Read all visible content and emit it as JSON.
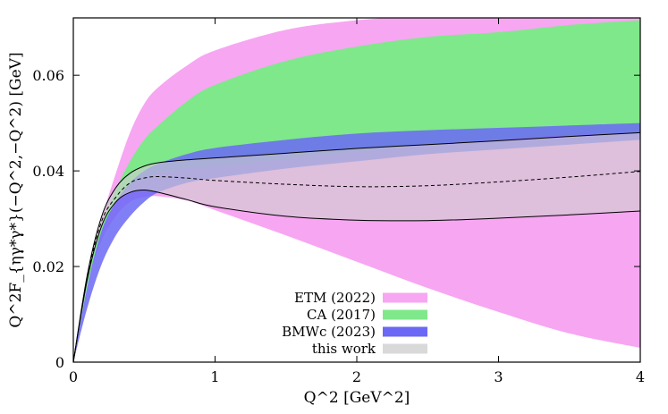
{
  "chart_data": {
    "type": "area",
    "xlabel": "Q^2 [GeV^2]",
    "ylabel": "Q^2F_{ηγ*γ*}(−Q^2,−Q^2) [GeV]",
    "xlim": [
      0,
      4
    ],
    "ylim": [
      0,
      0.072
    ],
    "x_ticks": [
      0,
      1,
      2,
      3,
      4
    ],
    "x_tick_labels": [
      "0",
      "1",
      "2",
      "3",
      "4"
    ],
    "y_ticks": [
      0,
      0.02,
      0.04,
      0.06
    ],
    "y_tick_labels": [
      "0",
      "0.02",
      "0.04",
      "0.06"
    ],
    "grid": false,
    "legend_position": "bottom-center",
    "series": [
      {
        "name": "ETM (2022)",
        "color": "#f7a6f2",
        "x": [
          0,
          0.1,
          0.2,
          0.3,
          0.4,
          0.5,
          0.6,
          0.8,
          1.0,
          1.5,
          2.0,
          2.5,
          3.0,
          3.5,
          4.0
        ],
        "lower": [
          0,
          0.0165,
          0.0255,
          0.0305,
          0.0335,
          0.0345,
          0.0347,
          0.0338,
          0.0318,
          0.0265,
          0.021,
          0.0155,
          0.0105,
          0.006,
          0.003
        ],
        "upper": [
          0,
          0.018,
          0.03,
          0.0395,
          0.048,
          0.054,
          0.0575,
          0.062,
          0.0652,
          0.0695,
          0.0715,
          0.0725,
          0.073,
          0.0735,
          0.074
        ]
      },
      {
        "name": "CA (2017)",
        "color": "#7fe88a",
        "x": [
          0,
          0.1,
          0.2,
          0.3,
          0.4,
          0.5,
          0.6,
          0.8,
          1.0,
          1.5,
          2.0,
          2.5,
          3.0,
          3.5,
          4.0
        ],
        "lower": [
          0,
          0.016,
          0.027,
          0.0335,
          0.0365,
          0.0385,
          0.0395,
          0.0405,
          0.041,
          0.0425,
          0.044,
          0.0455,
          0.0465,
          0.0475,
          0.048
        ],
        "upper": [
          0,
          0.0175,
          0.0285,
          0.036,
          0.042,
          0.0465,
          0.0495,
          0.0545,
          0.058,
          0.063,
          0.066,
          0.068,
          0.069,
          0.0705,
          0.0715
        ]
      },
      {
        "name": "BMWc (2023)",
        "color": "#6b68f5",
        "x": [
          0,
          0.1,
          0.2,
          0.3,
          0.4,
          0.5,
          0.6,
          0.8,
          1.0,
          1.5,
          2.0,
          2.5,
          3.0,
          3.5,
          4.0
        ],
        "lower": [
          0,
          0.0115,
          0.0205,
          0.0265,
          0.0305,
          0.0335,
          0.0355,
          0.0375,
          0.0385,
          0.0405,
          0.042,
          0.0435,
          0.0445,
          0.0455,
          0.0465
        ],
        "upper": [
          0,
          0.016,
          0.0275,
          0.0335,
          0.0375,
          0.04,
          0.0415,
          0.0435,
          0.0448,
          0.0465,
          0.0478,
          0.0485,
          0.049,
          0.0495,
          0.05
        ]
      },
      {
        "name": "this work",
        "color": "#cfcfcf",
        "x": [
          0,
          0.1,
          0.2,
          0.3,
          0.4,
          0.5,
          0.6,
          0.8,
          1.0,
          1.5,
          2.0,
          2.5,
          3.0,
          3.5,
          4.0
        ],
        "lower": [
          0,
          0.0175,
          0.0285,
          0.0335,
          0.0355,
          0.036,
          0.0355,
          0.034,
          0.0325,
          0.0305,
          0.0297,
          0.0296,
          0.0301,
          0.0308,
          0.0316
        ],
        "central": [
          0,
          0.018,
          0.0295,
          0.0345,
          0.0375,
          0.0385,
          0.0388,
          0.0385,
          0.038,
          0.0372,
          0.0367,
          0.0369,
          0.0377,
          0.0387,
          0.0399
        ],
        "upper": [
          0,
          0.0185,
          0.0305,
          0.0365,
          0.0395,
          0.041,
          0.0417,
          0.0423,
          0.0427,
          0.0437,
          0.0447,
          0.0455,
          0.0463,
          0.0472,
          0.048
        ]
      }
    ]
  }
}
